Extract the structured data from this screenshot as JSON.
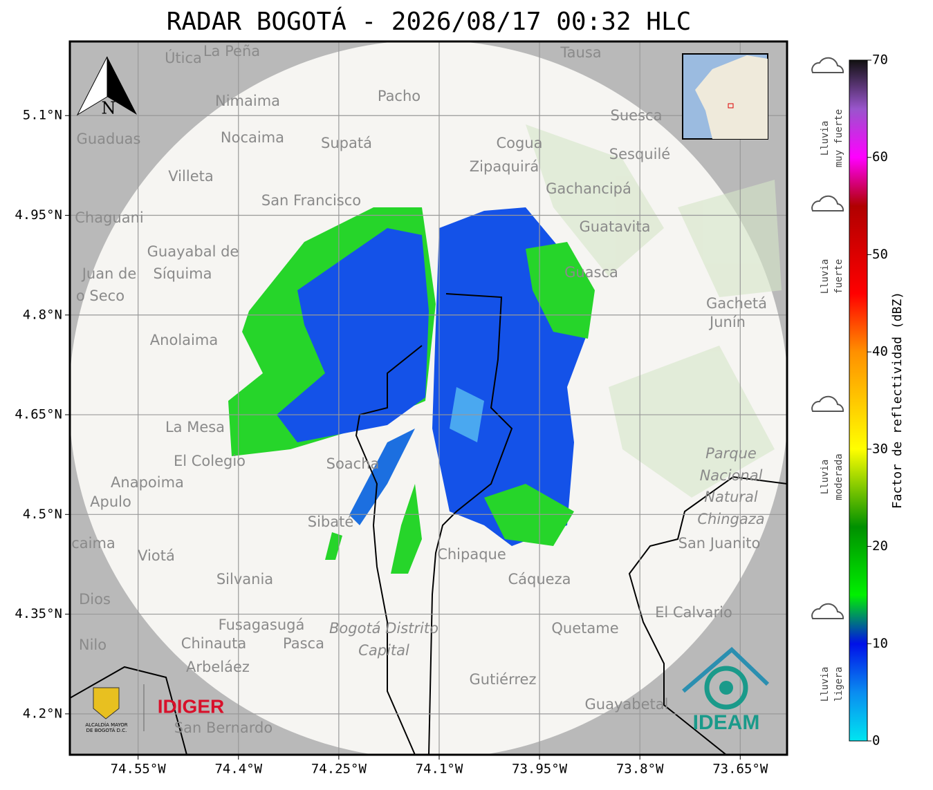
{
  "title": "RADAR BOGOTÁ - 2026/08/17 00:32 HLC",
  "map": {
    "xlim": [
      -74.652,
      -73.58
    ],
    "ylim": [
      4.1385,
      5.2115
    ],
    "grid": true,
    "xticks": [
      {
        "value": -74.55,
        "label": "74.55°W"
      },
      {
        "value": -74.4,
        "label": "74.4°W"
      },
      {
        "value": -74.25,
        "label": "74.25°W"
      },
      {
        "value": -74.1,
        "label": "74.1°W"
      },
      {
        "value": -73.95,
        "label": "73.95°W"
      },
      {
        "value": -73.8,
        "label": "73.8°W"
      },
      {
        "value": -73.65,
        "label": "73.65°W"
      }
    ],
    "yticks": [
      {
        "value": 4.2,
        "label": "4.2°N"
      },
      {
        "value": 4.35,
        "label": "4.35°N"
      },
      {
        "value": 4.5,
        "label": "4.5°N"
      },
      {
        "value": 4.65,
        "label": "4.65°N"
      },
      {
        "value": 4.8,
        "label": "4.8°N"
      },
      {
        "value": 4.95,
        "label": "4.95°N"
      },
      {
        "value": 5.1,
        "label": "5.1°N"
      }
    ],
    "places": [
      "Útica",
      "La Peña",
      "Tausa",
      "Pacho",
      "Nimaima",
      "Guaduas",
      "Nocaima",
      "Supatá",
      "Cogua",
      "Suesca",
      "Sesquilé",
      "Zipaquirá",
      "Villeta",
      "Gachancipá",
      "San Francisco",
      "Chaguani",
      "Guatavita",
      "Guayabal de",
      "Síquima",
      "Juan de",
      "o Seco",
      "Guasca",
      "Gachetá",
      "Junín",
      "Anolaima",
      "La Mesa",
      "El Colegio",
      "Soacha",
      "Parque",
      "Nacional",
      "Natural",
      "Chingaza",
      "Anapoima",
      "Apulo",
      "Sibaté",
      "San Juanito",
      "caima",
      "Viotá",
      "Chipaque",
      "Silvania",
      "Cáqueza",
      "Dios",
      "El Calvario",
      "Fusagasugá",
      "Quetame",
      "Bogotá Distrito",
      "Capital",
      "Nilo",
      "Chinauta",
      "Pasca",
      "Arbeláez",
      "Gutiérrez",
      "Guayabetal",
      "San Bernardo"
    ]
  },
  "colorbar": {
    "label": "Factor de reflectividad (dBZ)",
    "lim": [
      0,
      70
    ],
    "ticks": [
      0,
      10,
      20,
      30,
      40,
      50,
      60,
      70
    ],
    "stops": [
      {
        "value": 0,
        "color": "#00e5f0"
      },
      {
        "value": 5,
        "color": "#0a8cf0"
      },
      {
        "value": 10,
        "color": "#0010e8"
      },
      {
        "value": 15,
        "color": "#00f000"
      },
      {
        "value": 22,
        "color": "#009000"
      },
      {
        "value": 30,
        "color": "#ffff00"
      },
      {
        "value": 40,
        "color": "#ff9000"
      },
      {
        "value": 46,
        "color": "#ff0000"
      },
      {
        "value": 55,
        "color": "#b00000"
      },
      {
        "value": 60,
        "color": "#ff00ff"
      },
      {
        "value": 65,
        "color": "#9955cc"
      },
      {
        "value": 70,
        "color": "#111111"
      }
    ]
  },
  "intensity": [
    {
      "lines": [
        "Lluvia",
        "muy fuerte"
      ]
    },
    {
      "lines": [
        "Lluvia",
        "fuerte"
      ]
    },
    {
      "lines": [
        "Lluvia",
        "moderada"
      ]
    },
    {
      "lines": [
        "Lluvia",
        "ligera"
      ]
    }
  ],
  "logos": {
    "north": "N",
    "idiger": "IDIGER",
    "ideam": "IDEAM",
    "alcaldia": [
      "ALCALDÍA MAYOR",
      "DE BOGOTÁ D.C."
    ]
  }
}
